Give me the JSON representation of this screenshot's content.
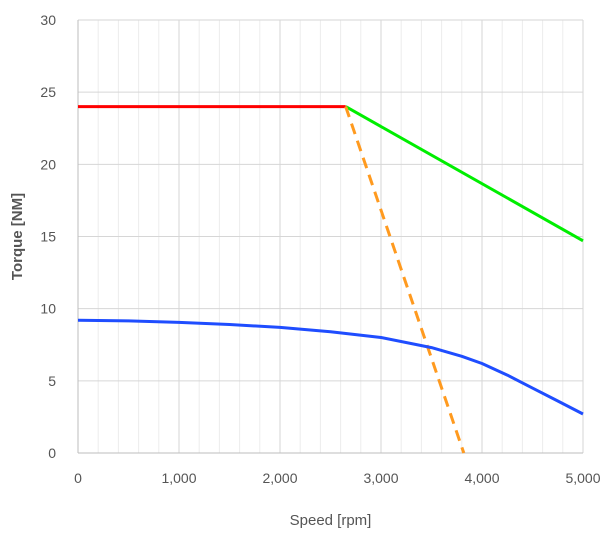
{
  "chart_data": {
    "type": "line",
    "title": "",
    "xlabel": "Speed [rpm]",
    "ylabel": "Torque [NM]",
    "xlim": [
      0,
      5000
    ],
    "ylim": [
      0,
      30
    ],
    "x_ticks": [
      0,
      1000,
      2000,
      3000,
      4000,
      5000
    ],
    "x_tick_labels": [
      "0",
      "1,000",
      "2,000",
      "3,000",
      "4,000",
      "5,000"
    ],
    "y_ticks": [
      0,
      5,
      10,
      15,
      20,
      25,
      30
    ],
    "y_tick_labels": [
      "0",
      "5",
      "10",
      "15",
      "20",
      "25",
      "30"
    ],
    "x_minor_step": 200,
    "grid": true,
    "legend": "none",
    "series": [
      {
        "color": "#ff0000",
        "dash": "solid",
        "x": [
          0,
          2650
        ],
        "y": [
          24,
          24
        ]
      },
      {
        "color": "#00ee00",
        "dash": "solid",
        "x": [
          2650,
          5000
        ],
        "y": [
          24,
          14.7
        ]
      },
      {
        "color": "#ff9a1f",
        "dash": "dashed",
        "x": [
          2650,
          3820
        ],
        "y": [
          24,
          0
        ]
      },
      {
        "color": "#1f4dff",
        "dash": "solid",
        "x": [
          0,
          500,
          1000,
          1500,
          2000,
          2500,
          3000,
          3500,
          3800,
          4000,
          4250,
          4500,
          4750,
          5000
        ],
        "y": [
          9.2,
          9.15,
          9.05,
          8.9,
          8.7,
          8.4,
          8.0,
          7.3,
          6.7,
          6.2,
          5.4,
          4.5,
          3.6,
          2.7
        ]
      }
    ]
  }
}
